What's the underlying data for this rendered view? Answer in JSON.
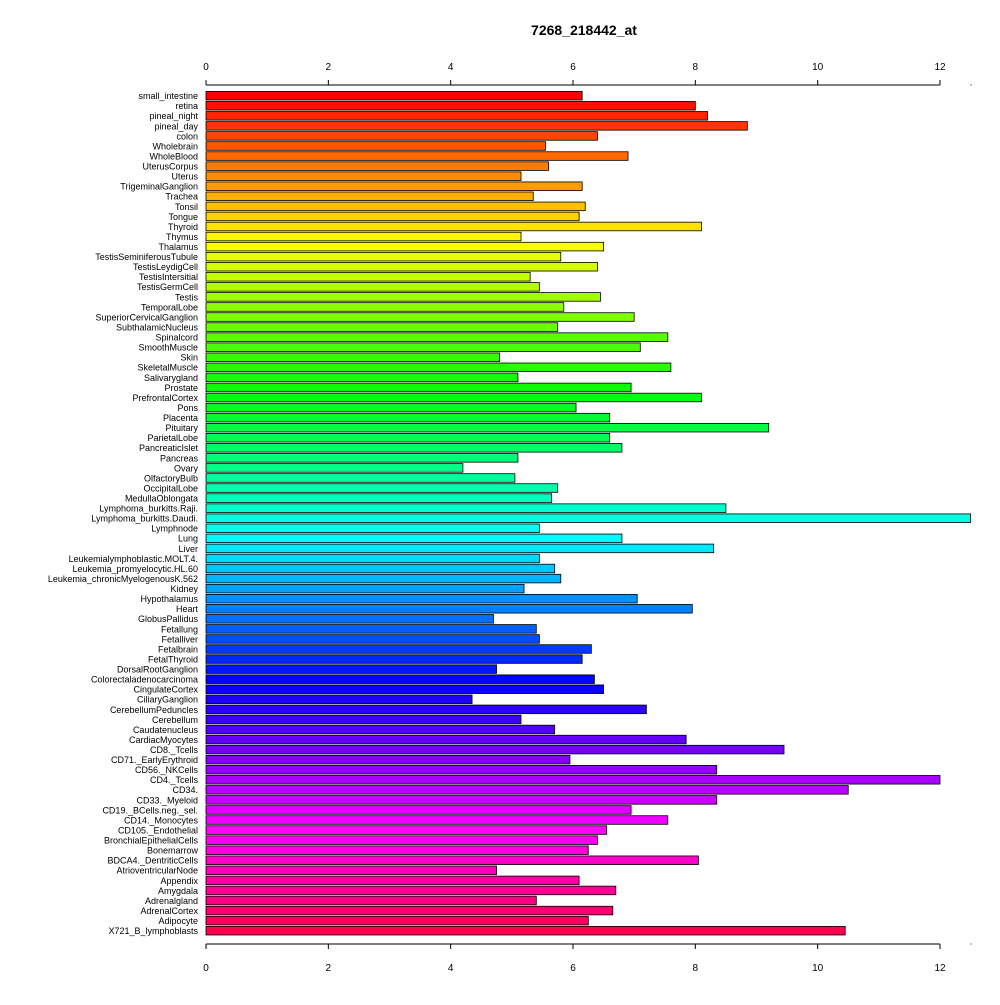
{
  "chart_data": {
    "type": "bar",
    "orientation": "horizontal",
    "title": "7268_218442_at",
    "xlabel": "",
    "ylabel": "",
    "xlim": [
      0,
      12
    ],
    "xticks": [
      0,
      2,
      4,
      6,
      8,
      10,
      12
    ],
    "grid": false,
    "legend": "none",
    "categories": [
      "small_intestine",
      "retina",
      "pineal_night",
      "pineal_day",
      "colon",
      "Wholebrain",
      "WholeBlood",
      "UterusCorpus",
      "Uterus",
      "TrigeminalGanglion",
      "Trachea",
      "Tonsil",
      "Tongue",
      "Thyroid",
      "Thymus",
      "Thalamus",
      "TestisSeminiferousTubule",
      "TestisLeydigCell",
      "TestisIntersitial",
      "TestisGermCell",
      "Testis",
      "TemporalLobe",
      "SuperiorCervicalGanglion",
      "SubthalamicNucleus",
      "Spinalcord",
      "SmoothMuscle",
      "Skin",
      "SkeletalMuscle",
      "Salivarygland",
      "Prostate",
      "PrefrontalCortex",
      "Pons",
      "Placenta",
      "Pituitary",
      "ParietalLobe",
      "PancreaticIslet",
      "Pancreas",
      "Ovary",
      "OlfactoryBulb",
      "OccipitalLobe",
      "MedullaOblongata",
      "Lymphoma_burkitts.Raji.",
      "Lymphoma_burkitts.Daudi.",
      "Lymphnode",
      "Lung",
      "Liver",
      "Leukemialymphoblastic.MOLT.4.",
      "Leukemia_promyelocytic.HL.60",
      "Leukemia_chronicMyelogenousK.562",
      "Kidney",
      "Hypothalamus",
      "Heart",
      "GlobusPallidus",
      "Fetallung",
      "Fetalliver",
      "Fetalbrain",
      "FetalThyroid",
      "DorsalRootGanglion",
      "Colorectaladenocarcinoma",
      "CingulateCortex",
      "CiliaryGanglion",
      "CerebellumPeduncles",
      "Cerebellum",
      "Caudatenucleus",
      "CardiacMyocytes",
      "CD8._Tcells",
      "CD71._EarlyErythroid",
      "CD56._NKCells",
      "CD4._Tcells",
      "CD34.",
      "CD33._Myeloid",
      "CD19._BCells.neg._sel.",
      "CD14._Monocytes",
      "CD105._Endothelial",
      "BronchialEpithelialCells",
      "Bonemarrow",
      "BDCA4._DentriticCells",
      "AtrioventricularNode",
      "Appendix",
      "Amygdala",
      "Adrenalgland",
      "AdrenalCortex",
      "Adipocyte",
      "X721_B_lymphoblasts"
    ],
    "values": [
      6.15,
      8.0,
      8.2,
      8.85,
      6.4,
      5.55,
      6.9,
      5.6,
      5.15,
      6.15,
      5.35,
      6.2,
      6.1,
      8.1,
      5.15,
      6.5,
      5.8,
      6.4,
      5.3,
      5.45,
      6.45,
      5.85,
      7.0,
      5.75,
      7.55,
      7.1,
      4.8,
      7.6,
      5.1,
      6.95,
      8.1,
      6.05,
      6.6,
      9.2,
      6.6,
      6.8,
      5.1,
      4.2,
      5.05,
      5.75,
      5.65,
      8.5,
      12.5,
      5.45,
      6.8,
      8.3,
      5.45,
      5.7,
      5.8,
      5.2,
      7.05,
      7.95,
      4.7,
      5.4,
      5.45,
      6.3,
      6.15,
      4.75,
      6.35,
      6.5,
      4.35,
      7.2,
      5.15,
      5.7,
      7.85,
      9.45,
      5.95,
      8.35,
      12.0,
      10.5,
      8.35,
      6.95,
      7.55,
      6.55,
      6.4,
      6.25,
      8.05,
      4.75,
      6.1,
      6.7,
      5.4,
      6.65,
      6.25,
      10.45
    ],
    "color_scheme": "rainbow"
  }
}
